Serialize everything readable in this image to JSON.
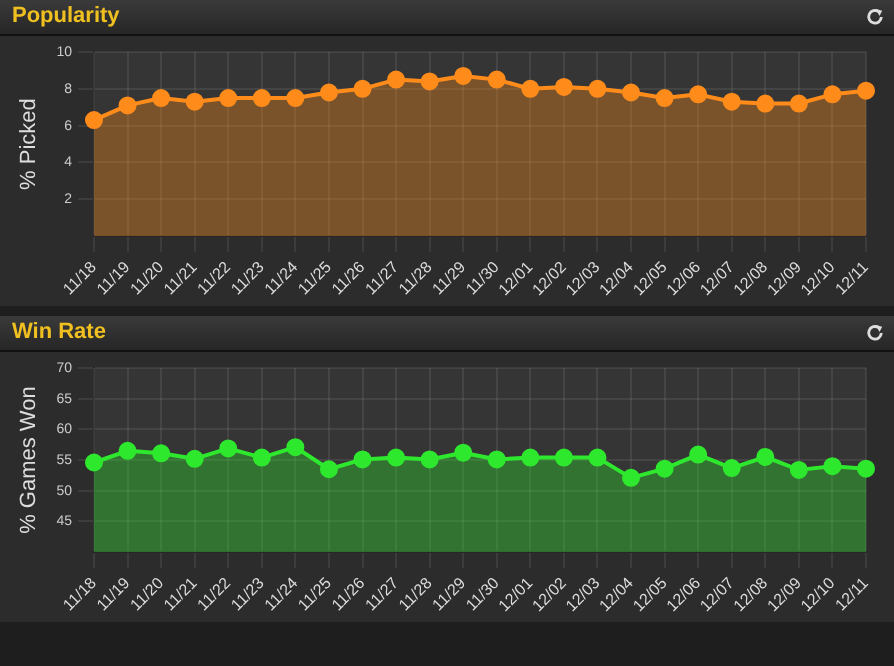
{
  "chart_data": [
    {
      "type": "area",
      "title": "Popularity",
      "ylabel": "% Picked",
      "categories": [
        "11/18",
        "11/19",
        "11/20",
        "11/21",
        "11/22",
        "11/23",
        "11/24",
        "11/25",
        "11/26",
        "11/27",
        "11/28",
        "11/29",
        "11/30",
        "12/01",
        "12/02",
        "12/03",
        "12/04",
        "12/05",
        "12/06",
        "12/07",
        "12/08",
        "12/09",
        "12/10",
        "12/11"
      ],
      "series": [
        {
          "color": "#ff8c1a",
          "values": [
            6.3,
            7.1,
            7.5,
            7.3,
            7.5,
            7.5,
            7.5,
            7.8,
            8.0,
            8.5,
            8.4,
            8.7,
            8.5,
            8.0,
            8.1,
            8.0,
            7.8,
            7.5,
            7.7,
            7.3,
            7.2,
            7.2,
            7.7,
            7.9
          ]
        }
      ],
      "ylim": [
        0,
        10
      ],
      "yticks": [
        2,
        4,
        6,
        8,
        10
      ],
      "grid": true,
      "legend": false,
      "marker": "circle"
    },
    {
      "type": "area",
      "title": "Win Rate",
      "ylabel": "% Games Won",
      "categories": [
        "11/18",
        "11/19",
        "11/20",
        "11/21",
        "11/22",
        "11/23",
        "11/24",
        "11/25",
        "11/26",
        "11/27",
        "11/28",
        "11/29",
        "11/30",
        "12/01",
        "12/02",
        "12/03",
        "12/04",
        "12/05",
        "12/06",
        "12/07",
        "12/08",
        "12/09",
        "12/10",
        "12/11"
      ],
      "series": [
        {
          "color": "#2ee82e",
          "values": [
            54.6,
            56.5,
            56.1,
            55.2,
            56.9,
            55.4,
            57.1,
            53.5,
            55.1,
            55.4,
            55.1,
            56.2,
            55.1,
            55.4,
            55.4,
            55.4,
            52.1,
            53.6,
            55.9,
            53.7,
            55.5,
            53.4,
            54.0,
            53.6
          ]
        }
      ],
      "ylim": [
        40,
        70
      ],
      "yticks": [
        45,
        50,
        55,
        60,
        65,
        70
      ],
      "grid": true,
      "legend": false,
      "marker": "circle"
    }
  ]
}
